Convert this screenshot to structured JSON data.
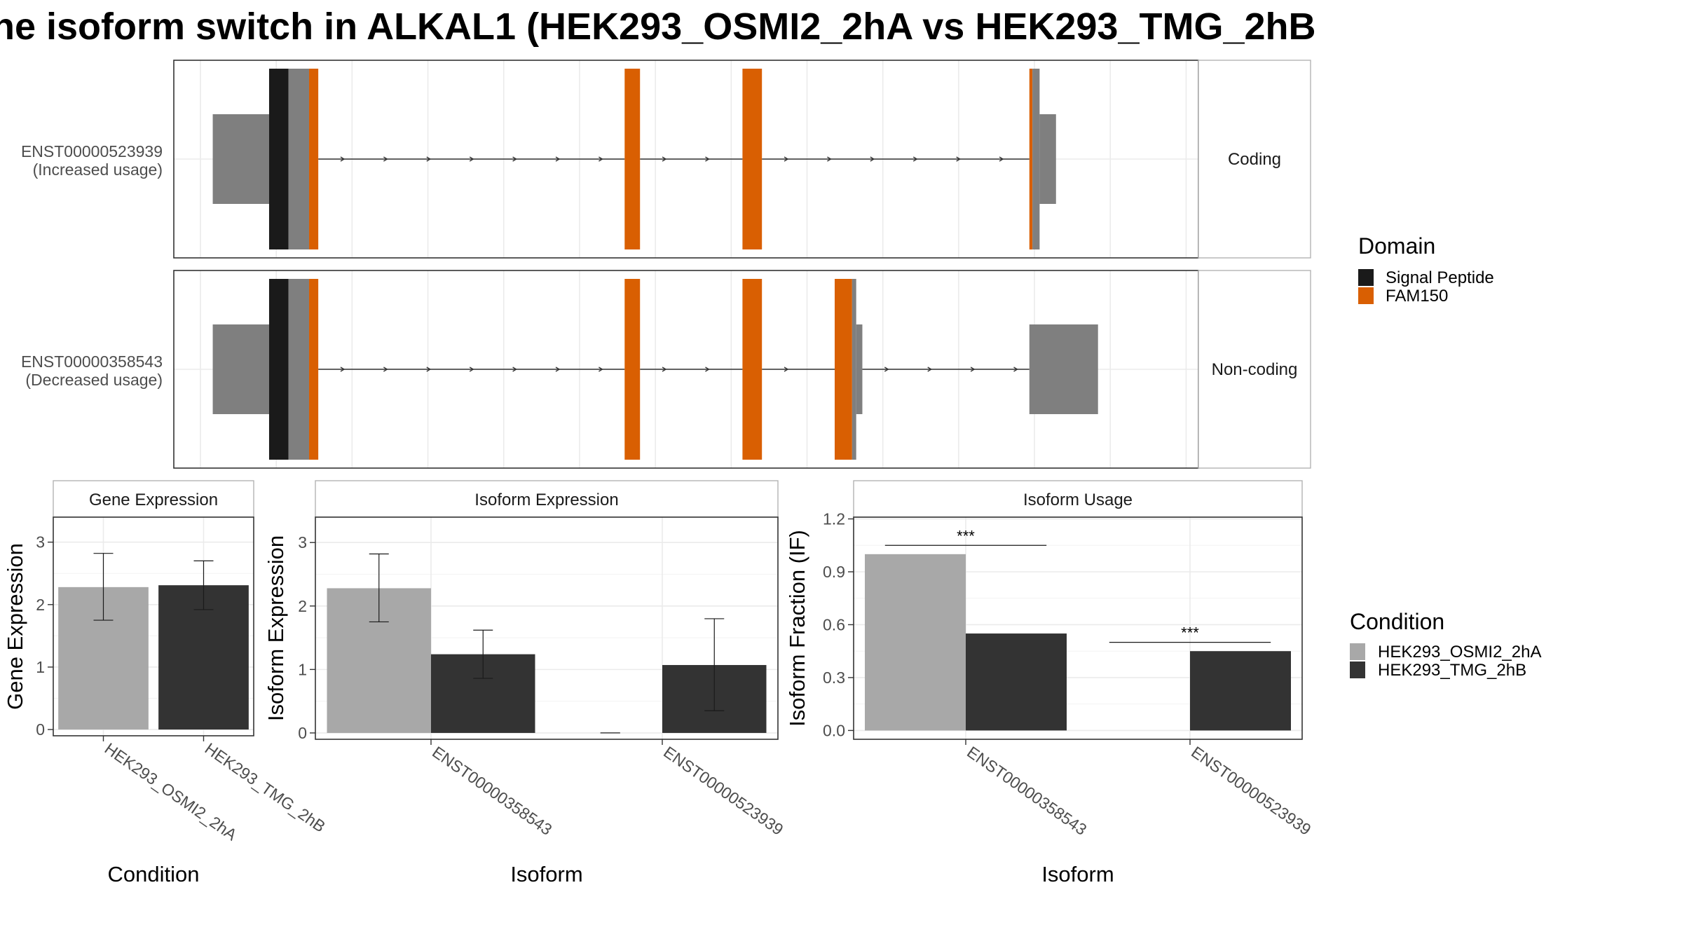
{
  "title": "ne isoform switch in ALKAL1 (HEK293_OSMI2_2hA vs HEK293_TMG_2hB",
  "colors": {
    "signal_peptide": "#1a1a1a",
    "fam150": "#d95f02",
    "exon": "#7f7f7f",
    "cond_a": "#a8a8a8",
    "cond_b": "#333333",
    "grid": "#ebebeb",
    "panel_border": "#333333",
    "strip_border": "#b3b3b3"
  },
  "chart_data": [
    {
      "type": "other",
      "panel": "transcript-structure",
      "tracks": [
        {
          "id": "ENST00000523939",
          "label_line1": "ENST00000523939",
          "label_line2": "(Increased usage)",
          "strip": "Coding",
          "exons": [
            {
              "start": 3.8,
              "end": 9.3,
              "kind": "utr"
            },
            {
              "start": 9.3,
              "end": 11.2,
              "kind": "signal_peptide"
            },
            {
              "start": 11.2,
              "end": 13.2,
              "kind": "cds"
            },
            {
              "start": 13.2,
              "end": 14.1,
              "kind": "fam150"
            },
            {
              "start": 44.0,
              "end": 45.5,
              "kind": "fam150"
            },
            {
              "start": 55.5,
              "end": 57.4,
              "kind": "fam150"
            },
            {
              "start": 83.5,
              "end": 83.8,
              "kind": "fam150"
            },
            {
              "start": 83.8,
              "end": 84.5,
              "kind": "cds"
            },
            {
              "start": 84.5,
              "end": 86.1,
              "kind": "utr"
            }
          ],
          "introns": [
            [
              14.1,
              44.0
            ],
            [
              45.5,
              55.5
            ],
            [
              57.4,
              83.5
            ]
          ]
        },
        {
          "id": "ENST00000358543",
          "label_line1": "ENST00000358543",
          "label_line2": "(Decreased usage)",
          "strip": "Non-coding",
          "exons": [
            {
              "start": 3.8,
              "end": 9.3,
              "kind": "utr"
            },
            {
              "start": 9.3,
              "end": 11.2,
              "kind": "signal_peptide"
            },
            {
              "start": 11.2,
              "end": 13.2,
              "kind": "cds"
            },
            {
              "start": 13.2,
              "end": 14.1,
              "kind": "fam150"
            },
            {
              "start": 44.0,
              "end": 45.5,
              "kind": "fam150"
            },
            {
              "start": 55.5,
              "end": 57.4,
              "kind": "fam150"
            },
            {
              "start": 64.5,
              "end": 66.2,
              "kind": "fam150"
            },
            {
              "start": 66.2,
              "end": 66.6,
              "kind": "cds"
            },
            {
              "start": 66.6,
              "end": 67.2,
              "kind": "utr"
            },
            {
              "start": 83.5,
              "end": 90.2,
              "kind": "utr"
            }
          ],
          "introns": [
            [
              14.1,
              44.0
            ],
            [
              45.5,
              55.5
            ],
            [
              57.4,
              64.5
            ],
            [
              67.2,
              83.5
            ]
          ]
        }
      ],
      "legend": {
        "title": "Domain",
        "items": [
          {
            "label": "Signal Peptide",
            "color": "#1a1a1a"
          },
          {
            "label": "FAM150",
            "color": "#d95f02"
          }
        ]
      }
    },
    {
      "type": "bar",
      "panel": "gene-expression",
      "strip": "Gene Expression",
      "xlabel": "Condition",
      "ylabel": "Gene Expression",
      "categories": [
        "HEK293_OSMI2_2hA",
        "HEK293_TMG_2hB"
      ],
      "values": [
        2.28,
        2.31
      ],
      "errors": [
        [
          1.75,
          2.82
        ],
        [
          1.92,
          2.7
        ]
      ],
      "ylim": [
        -0.1,
        3.4
      ],
      "yticks": [
        0,
        1,
        2,
        3
      ]
    },
    {
      "type": "bar",
      "panel": "isoform-expression",
      "strip": "Isoform Expression",
      "xlabel": "Isoform",
      "ylabel": "Isoform Expression",
      "categories": [
        "ENST00000358543",
        "ENST00000523939"
      ],
      "series": [
        {
          "name": "HEK293_OSMI2_2hA",
          "values": [
            2.28,
            0.0
          ],
          "errors": [
            [
              1.75,
              2.82
            ],
            [
              0.0,
              0.0
            ]
          ]
        },
        {
          "name": "HEK293_TMG_2hB",
          "values": [
            1.24,
            1.07
          ],
          "errors": [
            [
              0.86,
              1.62
            ],
            [
              0.35,
              1.8
            ]
          ]
        }
      ],
      "ylim": [
        -0.1,
        3.4
      ],
      "yticks": [
        0,
        1,
        2,
        3
      ]
    },
    {
      "type": "bar",
      "panel": "isoform-usage",
      "strip": "Isoform Usage",
      "xlabel": "Isoform",
      "ylabel": "Isoform Fraction (IF)",
      "categories": [
        "ENST00000358543",
        "ENST00000523939"
      ],
      "series": [
        {
          "name": "HEK293_OSMI2_2hA",
          "values": [
            1.0,
            0.0
          ]
        },
        {
          "name": "HEK293_TMG_2hB",
          "values": [
            0.55,
            0.45
          ]
        }
      ],
      "significance": [
        {
          "category": 0,
          "label": "***",
          "y": 1.05
        },
        {
          "category": 1,
          "label": "***",
          "y": 0.5
        }
      ],
      "ylim": [
        -0.05,
        1.21
      ],
      "yticks": [
        "0.0",
        "0.3",
        "0.6",
        "0.9",
        "1.2"
      ]
    }
  ],
  "condition_legend": {
    "title": "Condition",
    "items": [
      {
        "label": "HEK293_OSMI2_2hA",
        "color": "#a8a8a8"
      },
      {
        "label": "HEK293_TMG_2hB",
        "color": "#333333"
      }
    ]
  }
}
